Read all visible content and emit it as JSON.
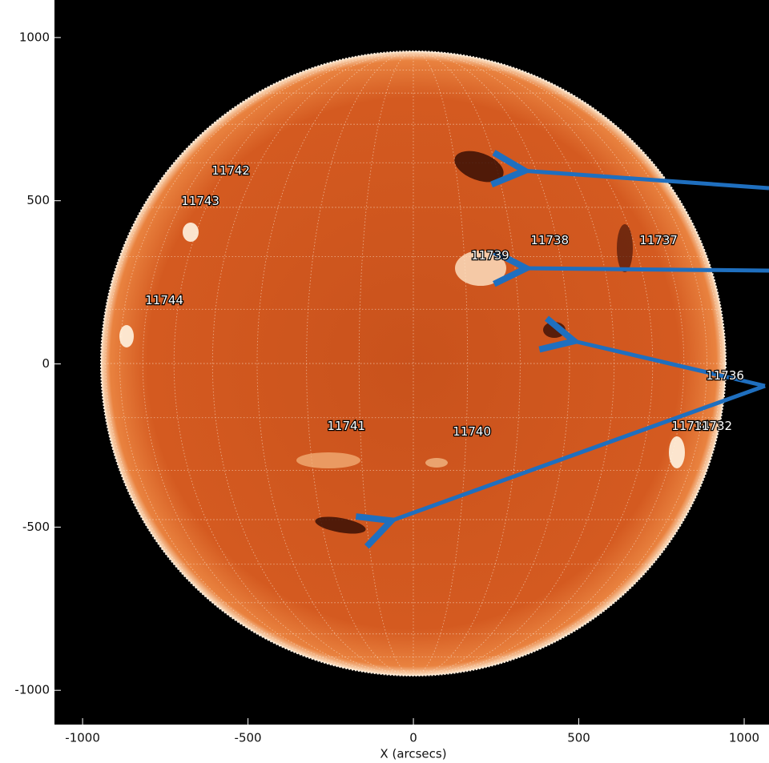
{
  "chart_data": {
    "type": "image",
    "x_label": "X (arcsecs)",
    "xlim": [
      -1085,
      1075
    ],
    "ylim": [
      -1105,
      1115
    ],
    "xticks": [
      -1000,
      -500,
      0,
      500,
      1000
    ],
    "yticks": [
      -1000,
      -500,
      0,
      500,
      1000
    ],
    "annotations": [
      {
        "text": "11742",
        "x": -552,
        "y": 591
      },
      {
        "text": "11743",
        "x": -644,
        "y": 498
      },
      {
        "text": "11744",
        "x": -753,
        "y": 194
      },
      {
        "text": "11739",
        "x": 232,
        "y": 331
      },
      {
        "text": "11738",
        "x": 412,
        "y": 378
      },
      {
        "text": "11737",
        "x": 741,
        "y": 378
      },
      {
        "text": "11736",
        "x": 942,
        "y": -37
      },
      {
        "text": "11734",
        "x": 838,
        "y": -191
      },
      {
        "text": "11732",
        "x": 906,
        "y": -191
      },
      {
        "text": "11741",
        "x": -203,
        "y": -191
      },
      {
        "text": "11740",
        "x": 177,
        "y": -209
      }
    ]
  }
}
